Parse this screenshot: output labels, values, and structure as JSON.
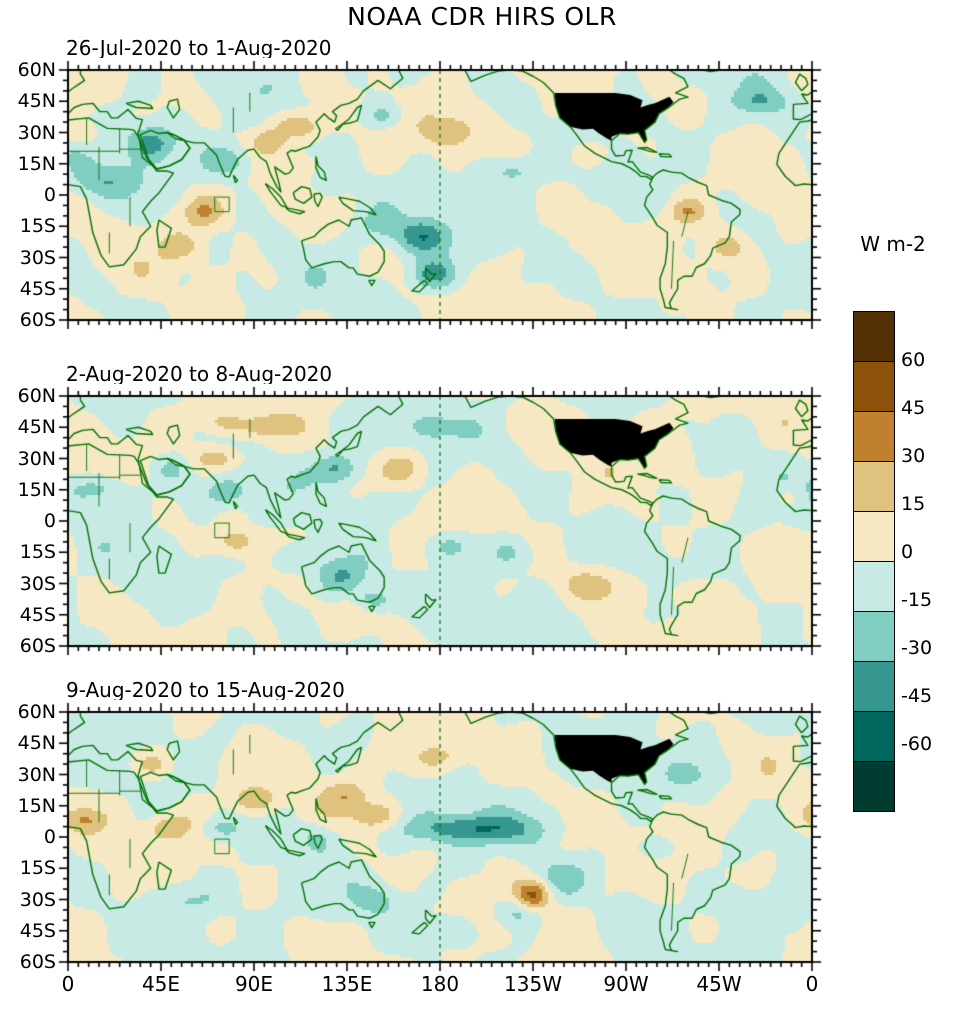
{
  "title": "NOAA CDR HIRS OLR",
  "colorbar": {
    "title": "W m-2",
    "colors": [
      "#543005",
      "#8c510a",
      "#bf812d",
      "#dfc27d",
      "#f6e8c3",
      "#c7eae5",
      "#80cdc1",
      "#35978f",
      "#01665e",
      "#003c30"
    ],
    "tick_labels": [
      "60",
      "45",
      "30",
      "15",
      "0",
      "-15",
      "-30",
      "-45",
      "-60"
    ]
  },
  "axes": {
    "lat_ticks": [
      {
        "label": "60N",
        "value": 60
      },
      {
        "label": "45N",
        "value": 45
      },
      {
        "label": "30N",
        "value": 30
      },
      {
        "label": "15N",
        "value": 15
      },
      {
        "label": "0",
        "value": 0
      },
      {
        "label": "15S",
        "value": -15
      },
      {
        "label": "30S",
        "value": -30
      },
      {
        "label": "45S",
        "value": -45
      },
      {
        "label": "60S",
        "value": -60
      }
    ],
    "lon_ticks": [
      {
        "label": "0",
        "value": 0
      },
      {
        "label": "45E",
        "value": 45
      },
      {
        "label": "90E",
        "value": 90
      },
      {
        "label": "135E",
        "value": 135
      },
      {
        "label": "180",
        "value": 180
      },
      {
        "label": "135W",
        "value": 225
      },
      {
        "label": "90W",
        "value": 270
      },
      {
        "label": "45W",
        "value": 315
      },
      {
        "label": "0",
        "value": 360
      }
    ]
  },
  "colors": {
    "coast": "#047204",
    "frame": "#000000",
    "missing": "#000000",
    "dateline": "#047204"
  },
  "chart_data": {
    "type": "heatmap",
    "variable": "OLR anomaly",
    "units": "W m-2",
    "levels": [
      -60,
      -45,
      -30,
      -15,
      0,
      15,
      30,
      45,
      60
    ],
    "lon_range": [
      0,
      360
    ],
    "lat_range": [
      -60,
      60
    ],
    "missing_region": "CONUS (black)",
    "panels": [
      {
        "subtitle": "26-Jul-2020 to 1-Aug-2020",
        "seed": 1,
        "anomaly_centers": [
          [
            40,
            25,
            8,
            6,
            -38
          ],
          [
            18,
            6,
            12,
            6,
            -24
          ],
          [
            66,
            -8,
            7,
            5,
            28
          ],
          [
            78,
            16,
            9,
            6,
            -30
          ],
          [
            6,
            29,
            6,
            4,
            24
          ],
          [
            97,
            25,
            6,
            4,
            22
          ],
          [
            113,
            33,
            9,
            5,
            30
          ],
          [
            128,
            5,
            8,
            5,
            -18
          ],
          [
            150,
            -14,
            8,
            6,
            -20
          ],
          [
            172,
            -20,
            9,
            6,
            -40
          ],
          [
            176,
            -38,
            7,
            5,
            -38
          ],
          [
            183,
            30,
            8,
            5,
            26
          ],
          [
            152,
            38,
            7,
            4,
            -20
          ],
          [
            215,
            12,
            10,
            5,
            -22
          ],
          [
            250,
            20,
            8,
            5,
            18
          ],
          [
            300,
            -8,
            6,
            4,
            26
          ],
          [
            320,
            -25,
            8,
            5,
            20
          ],
          [
            335,
            45,
            8,
            4,
            -20
          ],
          [
            55,
            -25,
            8,
            5,
            18
          ]
        ]
      },
      {
        "subtitle": "2-Aug-2020 to 8-Aug-2020",
        "seed": 2,
        "anomaly_centers": [
          [
            15,
            15,
            12,
            5,
            -26
          ],
          [
            72,
            30,
            8,
            4,
            26
          ],
          [
            76,
            14,
            8,
            5,
            -28
          ],
          [
            50,
            25,
            7,
            5,
            -18
          ],
          [
            81,
            -10,
            7,
            5,
            28
          ],
          [
            130,
            25,
            7,
            5,
            -35
          ],
          [
            160,
            25,
            8,
            5,
            24
          ],
          [
            150,
            8,
            6,
            4,
            -18
          ],
          [
            132,
            -27,
            10,
            7,
            -38
          ],
          [
            148,
            -38,
            6,
            4,
            -30
          ],
          [
            185,
            -12,
            8,
            5,
            -22
          ],
          [
            176,
            45,
            8,
            5,
            -20
          ],
          [
            95,
            45,
            8,
            4,
            24
          ],
          [
            75,
            47,
            7,
            4,
            20
          ],
          [
            215,
            -15,
            10,
            6,
            -20
          ],
          [
            255,
            -30,
            12,
            6,
            22
          ],
          [
            300,
            -35,
            8,
            5,
            20
          ],
          [
            350,
            12,
            6,
            4,
            18
          ],
          [
            108,
            -18,
            8,
            5,
            -20
          ]
        ]
      },
      {
        "subtitle": "9-Aug-2020 to 15-Aug-2020",
        "seed": 3,
        "anomaly_centers": [
          [
            195,
            4,
            22,
            5,
            -40
          ],
          [
            150,
            10,
            8,
            5,
            28
          ],
          [
            135,
            20,
            7,
            5,
            22
          ],
          [
            90,
            18,
            7,
            4,
            26
          ],
          [
            50,
            5,
            7,
            4,
            26
          ],
          [
            8,
            8,
            7,
            4,
            24
          ],
          [
            75,
            4,
            7,
            4,
            -22
          ],
          [
            120,
            0,
            7,
            5,
            -18
          ],
          [
            225,
            -28,
            6,
            5,
            45
          ],
          [
            218,
            -36,
            8,
            5,
            -26
          ],
          [
            238,
            -20,
            9,
            6,
            -22
          ],
          [
            185,
            -45,
            9,
            5,
            -20
          ],
          [
            60,
            -30,
            12,
            6,
            -18
          ],
          [
            150,
            -30,
            8,
            5,
            -18
          ],
          [
            282,
            -6,
            7,
            4,
            -18
          ],
          [
            320,
            -30,
            8,
            5,
            -18
          ],
          [
            40,
            35,
            7,
            4,
            20
          ],
          [
            180,
            38,
            9,
            5,
            20
          ],
          [
            300,
            30,
            8,
            5,
            -16
          ]
        ]
      }
    ]
  }
}
